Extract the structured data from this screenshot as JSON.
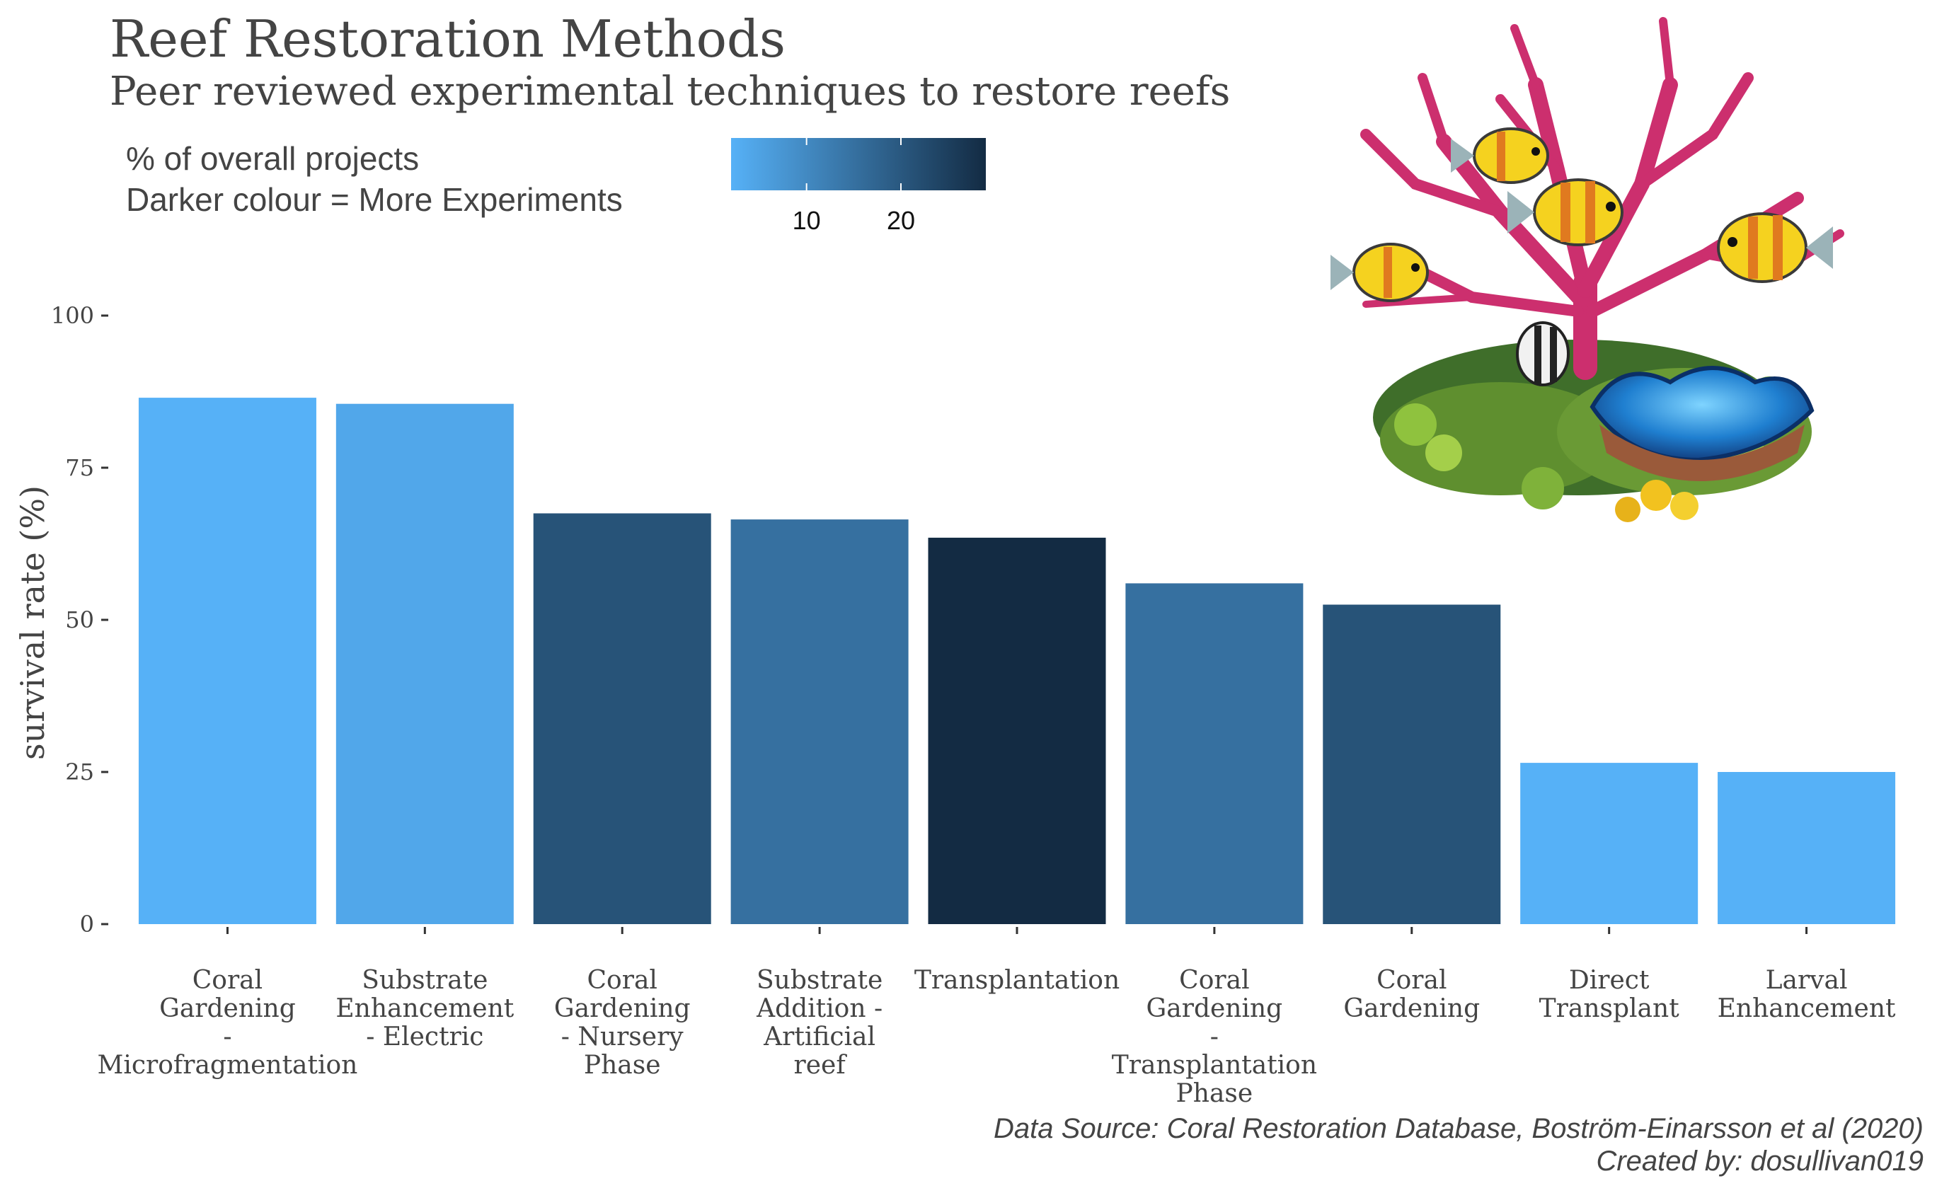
{
  "chart_data": {
    "type": "bar",
    "title": "Reef Restoration Methods",
    "subtitle": "Peer reviewed experimental techniques to restore reefs",
    "legend_title_lines": [
      "% of overall projects",
      "Darker colour = More Experiments"
    ],
    "legend_ticks": [
      10,
      20
    ],
    "legend_range": [
      2,
      29
    ],
    "legend_colors": [
      "#56b1f7",
      "#132b43"
    ],
    "ylabel": "survival rate (%)",
    "xlabel": "",
    "ylim": [
      0,
      100
    ],
    "yticks": [
      0,
      25,
      50,
      75,
      100
    ],
    "categories": [
      [
        "Coral",
        "Gardening",
        "-",
        "Microfragmentation"
      ],
      [
        "Substrate",
        "Enhancement",
        "- Electric"
      ],
      [
        "Coral",
        "Gardening",
        "- Nursery",
        "Phase"
      ],
      [
        "Substrate",
        "Addition -",
        "Artificial",
        "reef"
      ],
      [
        "Transplantation"
      ],
      [
        "Coral",
        "Gardening",
        "-",
        "Transplantation",
        "Phase"
      ],
      [
        "Coral",
        "Gardening"
      ],
      [
        "Direct",
        "Transplant"
      ],
      [
        "Larval",
        "Enhancement"
      ]
    ],
    "values": [
      86.5,
      85.5,
      67.5,
      66.5,
      63.5,
      56,
      52.5,
      26.5,
      25
    ],
    "percent_projects": [
      2,
      4,
      21,
      15,
      29,
      15,
      21,
      2,
      2
    ],
    "caption_lines": [
      "Data Source: Coral Restoration Database, Boström-Einarsson et al (2020)",
      "Created by: dosullivan019"
    ],
    "grid": false,
    "legend_position": "top"
  }
}
